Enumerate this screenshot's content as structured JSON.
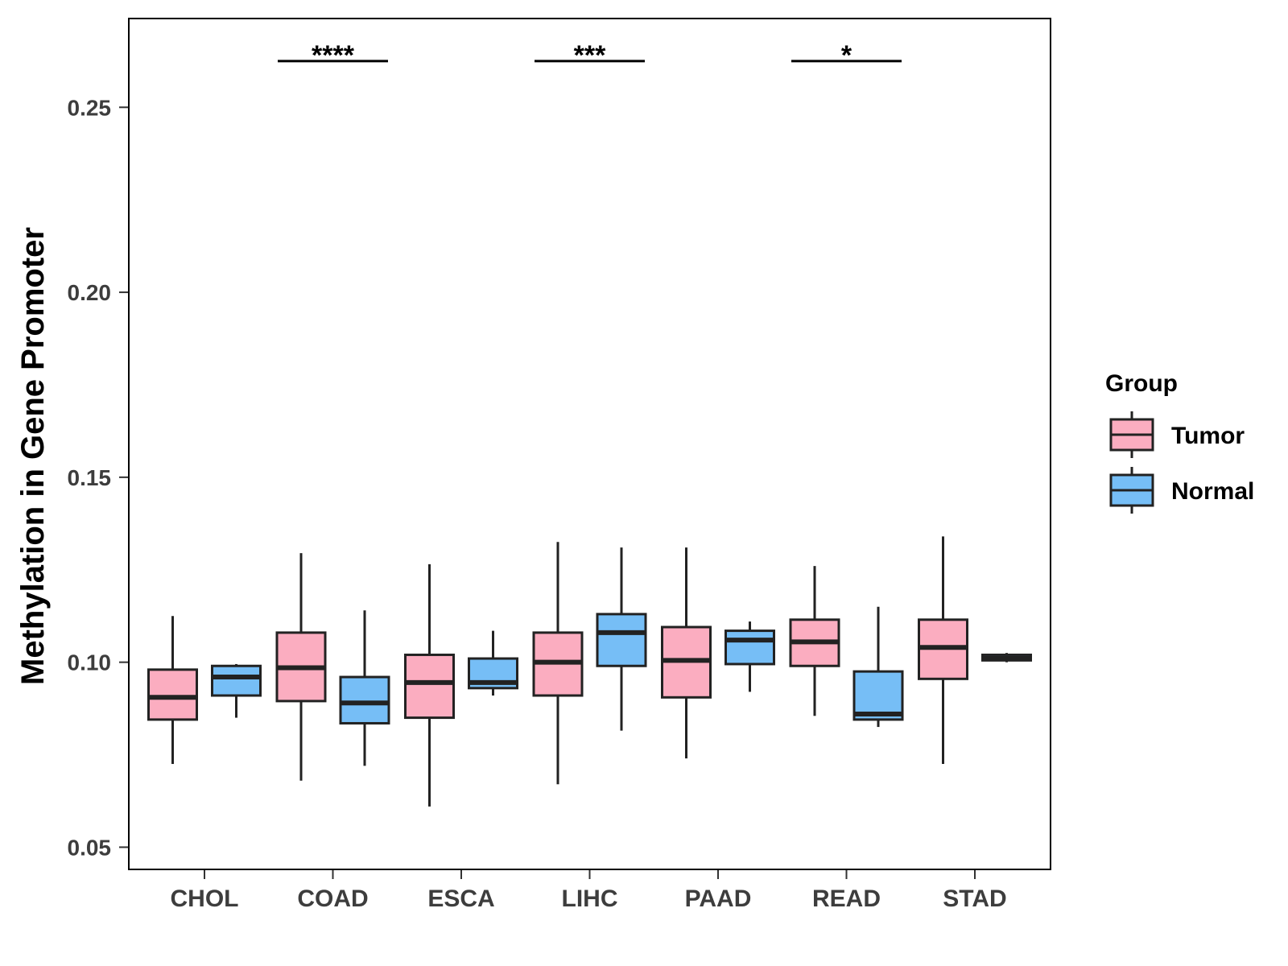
{
  "chart_data": {
    "type": "boxplot",
    "title": "",
    "xlabel": "",
    "ylabel": "Methylation in Gene Promoter",
    "ylim": [
      0.044,
      0.274
    ],
    "yticks": [
      "0.05",
      "0.10",
      "0.15",
      "0.20",
      "0.25"
    ],
    "categories": [
      "CHOL",
      "COAD",
      "ESCA",
      "LIHC",
      "PAAD",
      "READ",
      "STAD"
    ],
    "legend": {
      "title": "Group",
      "position": "right",
      "entries": [
        {
          "name": "Tumor",
          "color": "#FBADC0"
        },
        {
          "name": "Normal",
          "color": "#76BEF6"
        }
      ]
    },
    "series": [
      {
        "name": "Tumor",
        "color": "#FBADC0",
        "boxes": [
          {
            "whisker_low": 0.0725,
            "q1": 0.0845,
            "median": 0.0905,
            "q3": 0.098,
            "whisker_high": 0.1125
          },
          {
            "whisker_low": 0.068,
            "q1": 0.0895,
            "median": 0.0985,
            "q3": 0.108,
            "whisker_high": 0.1295
          },
          {
            "whisker_low": 0.061,
            "q1": 0.085,
            "median": 0.0945,
            "q3": 0.102,
            "whisker_high": 0.1265
          },
          {
            "whisker_low": 0.067,
            "q1": 0.091,
            "median": 0.1,
            "q3": 0.108,
            "whisker_high": 0.1325
          },
          {
            "whisker_low": 0.074,
            "q1": 0.0905,
            "median": 0.1005,
            "q3": 0.1095,
            "whisker_high": 0.131
          },
          {
            "whisker_low": 0.0855,
            "q1": 0.099,
            "median": 0.1055,
            "q3": 0.1115,
            "whisker_high": 0.126
          },
          {
            "whisker_low": 0.0725,
            "q1": 0.0955,
            "median": 0.104,
            "q3": 0.1115,
            "whisker_high": 0.134
          }
        ]
      },
      {
        "name": "Normal",
        "color": "#76BEF6",
        "boxes": [
          {
            "whisker_low": 0.085,
            "q1": 0.091,
            "median": 0.096,
            "q3": 0.099,
            "whisker_high": 0.0995
          },
          {
            "whisker_low": 0.072,
            "q1": 0.0835,
            "median": 0.089,
            "q3": 0.096,
            "whisker_high": 0.114
          },
          {
            "whisker_low": 0.091,
            "q1": 0.093,
            "median": 0.0945,
            "q3": 0.101,
            "whisker_high": 0.1085
          },
          {
            "whisker_low": 0.0815,
            "q1": 0.099,
            "median": 0.108,
            "q3": 0.113,
            "whisker_high": 0.131
          },
          {
            "whisker_low": 0.092,
            "q1": 0.0995,
            "median": 0.106,
            "q3": 0.1085,
            "whisker_high": 0.111
          },
          {
            "whisker_low": 0.0825,
            "q1": 0.0845,
            "median": 0.086,
            "q3": 0.0975,
            "whisker_high": 0.115
          },
          {
            "whisker_low": 0.1,
            "q1": 0.1005,
            "median": 0.101,
            "q3": 0.102,
            "whisker_high": 0.1025
          }
        ]
      }
    ],
    "annotations": [
      {
        "category": "COAD",
        "label": "****",
        "y": 0.2625
      },
      {
        "category": "LIHC",
        "label": "***",
        "y": 0.2625
      },
      {
        "category": "READ",
        "label": "*",
        "y": 0.2625
      }
    ]
  }
}
